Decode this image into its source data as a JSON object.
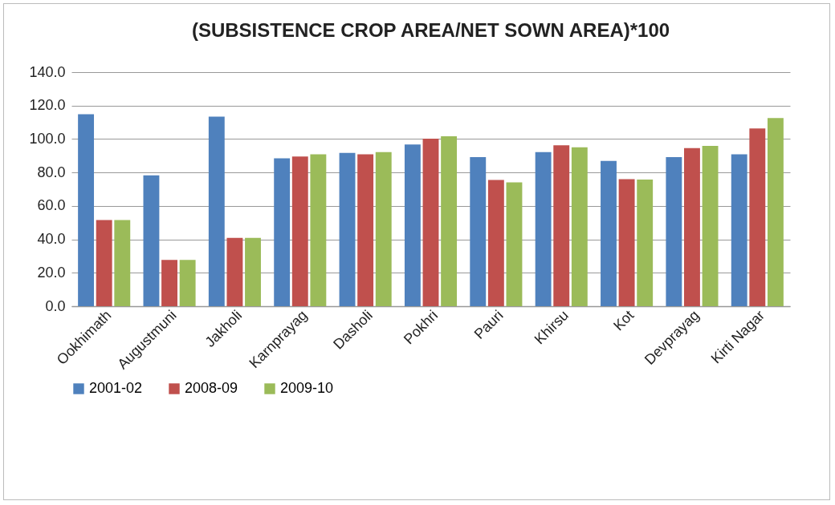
{
  "chart_data": {
    "type": "bar",
    "title": "(SUBSISTENCE CROP AREA/NET SOWN AREA)*100",
    "categories": [
      "Ookhimath",
      "Augustmuni",
      "Jakholi",
      "Karnprayag",
      "Dasholi",
      "Pokhri",
      "Pauri",
      "Khirsu",
      "Kot",
      "Devprayag",
      "Kirti Nagar"
    ],
    "series": [
      {
        "name": "2001-02",
        "color": "#4f81bd",
        "values": [
          114.8,
          78.3,
          113.4,
          88.4,
          91.7,
          96.7,
          89.2,
          92.2,
          86.9,
          89.2,
          90.9
        ]
      },
      {
        "name": "2008-09",
        "color": "#c0504d",
        "values": [
          51.5,
          27.7,
          40.9,
          89.5,
          90.8,
          100.2,
          75.5,
          96.2,
          76.0,
          94.6,
          106.3
        ]
      },
      {
        "name": "2009-10",
        "color": "#9bbb59",
        "values": [
          51.5,
          27.7,
          40.9,
          90.8,
          92.2,
          101.7,
          74.1,
          95.1,
          75.7,
          95.9,
          112.6
        ]
      }
    ],
    "ylim": [
      0,
      140
    ],
    "yticks": [
      {
        "value": 0,
        "label": "0.0"
      },
      {
        "value": 20,
        "label": "20.0"
      },
      {
        "value": 40,
        "label": "40.0"
      },
      {
        "value": 60,
        "label": "60.0"
      },
      {
        "value": 80,
        "label": "80.0"
      },
      {
        "value": 100,
        "label": "100.0"
      },
      {
        "value": 120,
        "label": "120.0"
      },
      {
        "value": 140,
        "label": "140.0"
      }
    ],
    "grid": "y",
    "legend": "bottom"
  }
}
